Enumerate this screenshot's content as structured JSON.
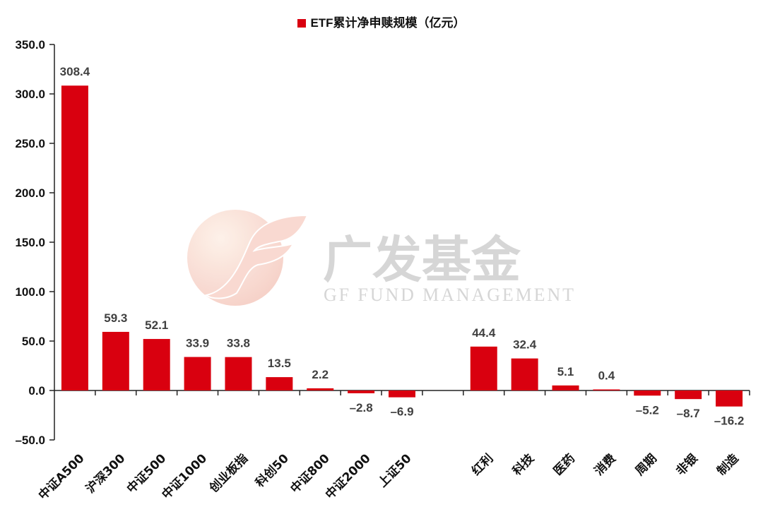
{
  "chart_data": {
    "type": "bar",
    "title": "",
    "legend": [
      {
        "label": "ETF累计净申赎规模（亿元）",
        "color": "#D9000F"
      }
    ],
    "legend_position": "top",
    "xlabel": "",
    "ylabel": "",
    "ylim": [
      -50,
      350
    ],
    "yticks": [
      350.0,
      300.0,
      250.0,
      200.0,
      150.0,
      100.0,
      50.0,
      0.0,
      -50.0
    ],
    "ytick_labels": [
      "350.0",
      "300.0",
      "250.0",
      "200.0",
      "150.0",
      "100.0",
      "50.0",
      "0.0",
      "-50.0"
    ],
    "grid": false,
    "categories": [
      "中证A500",
      "沪深300",
      "中证500",
      "中证1000",
      "创业板指",
      "科创50",
      "中证800",
      "中证2000",
      "上证50",
      "",
      "红利",
      "科技",
      "医药",
      "消费",
      "周期",
      "非银",
      "制造"
    ],
    "series": [
      {
        "name": "ETF累计净申赎规模（亿元）",
        "color": "#D9000F",
        "values": [
          308.4,
          59.3,
          52.1,
          33.9,
          33.8,
          13.5,
          2.2,
          -2.8,
          -6.9,
          null,
          44.4,
          32.4,
          5.1,
          0.4,
          -5.2,
          -8.7,
          -16.2
        ],
        "labels": [
          "308.4",
          "59.3",
          "52.1",
          "33.9",
          "33.8",
          "13.5",
          "2.2",
          "–2.8",
          "–6.9",
          "",
          "44.4",
          "32.4",
          "5.1",
          "0.4",
          "–5.2",
          "–8.7",
          "–16.2"
        ]
      }
    ]
  },
  "watermark": {
    "cn": "广发基金",
    "en": "GF FUND MANAGEMENT"
  }
}
